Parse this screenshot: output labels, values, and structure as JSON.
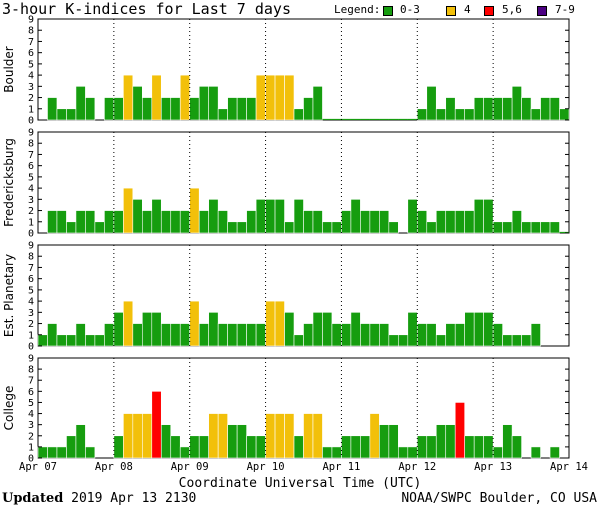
{
  "header": {
    "title": "3-hour K-indices for Last 7 days"
  },
  "legend": {
    "label": "Legend:",
    "entries": [
      {
        "label": "0-3",
        "color": "#169d0f"
      },
      {
        "label": "4",
        "color": "#f2c00a"
      },
      {
        "label": "5,6",
        "color": "#ff0000"
      },
      {
        "label": "7-9",
        "color": "#4b0082"
      }
    ]
  },
  "footer": {
    "updated_label": "Updated",
    "updated_value": "2019 Apr 13 2130",
    "credit": "NOAA/SWPC Boulder, CO USA"
  },
  "chart_data": {
    "type": "bar",
    "title": "3-hour K-indices for Last 7 days",
    "xlabel": "Coordinate Universal Time (UTC)",
    "x_ticks": [
      "Apr 07",
      "Apr 08",
      "Apr 09",
      "Apr 10",
      "Apr 11",
      "Apr 12",
      "Apr 13",
      "Apr 14"
    ],
    "y_ticks": [
      "0",
      "1",
      "2",
      "3",
      "4",
      "5",
      "6",
      "7",
      "8",
      "9"
    ],
    "ylim": [
      0,
      9
    ],
    "bins_per_day": 8,
    "color_scale": {
      "0-3": "#169d0f",
      "4": "#f2c00a",
      "5-6": "#ff0000",
      "7-9": "#4b0082"
    },
    "series": [
      {
        "name": "Boulder",
        "values": [
          0,
          2,
          1,
          1,
          3,
          2,
          0,
          2,
          2,
          4,
          3,
          2,
          4,
          2,
          2,
          4,
          2,
          3,
          3,
          1,
          2,
          2,
          2,
          4,
          4,
          4,
          4,
          1,
          2,
          3,
          0.1,
          0.1,
          0.1,
          0.1,
          0.1,
          0.1,
          0.1,
          0.1,
          0.1,
          0.1,
          1,
          3,
          1,
          2,
          1,
          1,
          2,
          2,
          2,
          2,
          3,
          2,
          1,
          2,
          2,
          1,
          0.1
        ]
      },
      {
        "name": "Fredericksburg",
        "values": [
          0,
          2,
          2,
          1,
          2,
          2,
          1,
          2,
          2,
          4,
          3,
          2,
          3,
          2,
          2,
          2,
          4,
          2,
          3,
          2,
          1,
          1,
          2,
          3,
          3,
          3,
          1,
          3,
          2,
          2,
          1,
          1,
          2,
          3,
          2,
          2,
          2,
          1,
          0,
          3,
          2,
          1,
          2,
          2,
          2,
          2,
          3,
          3,
          1,
          1,
          2,
          1,
          1,
          1,
          1,
          0.1,
          0
        ]
      },
      {
        "name": "Est. Planetary",
        "values": [
          1,
          2,
          1,
          1,
          2,
          1,
          1,
          2,
          3,
          4,
          2,
          3,
          3,
          2,
          2,
          2,
          4,
          2,
          3,
          2,
          2,
          2,
          2,
          2,
          4,
          4,
          3,
          1,
          2,
          3,
          3,
          2,
          2,
          3,
          2,
          2,
          2,
          1,
          1,
          3,
          2,
          2,
          1,
          2,
          2,
          3,
          3,
          3,
          2,
          1,
          1,
          1,
          2,
          0,
          0,
          0,
          0
        ]
      },
      {
        "name": "College",
        "values": [
          1,
          1,
          1,
          2,
          3,
          1,
          0,
          0,
          2,
          4,
          4,
          4,
          6,
          3,
          2,
          1,
          2,
          2,
          4,
          4,
          3,
          3,
          2,
          2,
          4,
          4,
          4,
          2,
          4,
          4,
          1,
          1,
          2,
          2,
          2,
          4,
          3,
          3,
          1,
          1,
          2,
          2,
          3,
          3,
          5,
          2,
          2,
          2,
          1,
          3,
          2,
          0,
          1,
          0,
          1,
          0,
          0
        ]
      }
    ]
  }
}
